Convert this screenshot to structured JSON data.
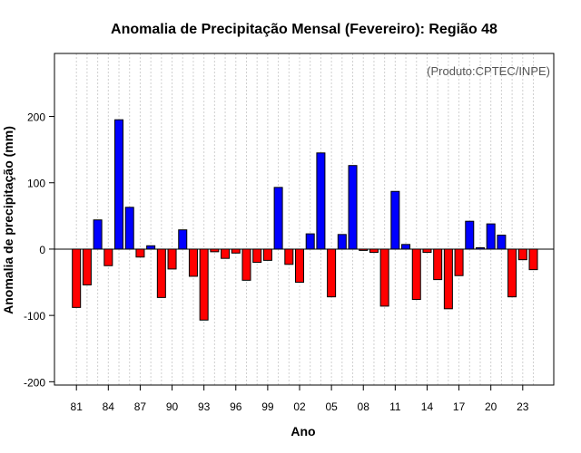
{
  "chart_data": {
    "type": "bar",
    "title": "Anomalia de Precipitação Mensal (Fevereiro): Região 48",
    "xlabel": "Ano",
    "ylabel": "Anomalia de precipitação (mm)",
    "credit": "(Produto:CPTEC/INPE)",
    "ylim": [
      -205,
      295
    ],
    "yticks": [
      -200,
      -100,
      0,
      100,
      200
    ],
    "ytick_labels": [
      "-200",
      "-100",
      "0",
      "100",
      "200"
    ],
    "categories": [
      "81",
      "82",
      "83",
      "84",
      "85",
      "86",
      "87",
      "88",
      "89",
      "90",
      "91",
      "92",
      "93",
      "94",
      "95",
      "96",
      "97",
      "98",
      "99",
      "00",
      "01",
      "02",
      "03",
      "04",
      "05",
      "06",
      "07",
      "08",
      "09",
      "10",
      "11",
      "12",
      "13",
      "14",
      "15",
      "16",
      "17",
      "18",
      "19",
      "20",
      "21",
      "22",
      "23",
      "24"
    ],
    "xtick_labels": [
      "81",
      "84",
      "87",
      "90",
      "93",
      "96",
      "99",
      "02",
      "05",
      "08",
      "11",
      "14",
      "17",
      "20",
      "23"
    ],
    "values": [
      -88,
      -54,
      44,
      -25,
      195,
      63,
      -12,
      5,
      -73,
      -30,
      29,
      -41,
      -107,
      -4,
      -14,
      -6,
      -47,
      -20,
      -17,
      93,
      -23,
      -50,
      23,
      145,
      -72,
      22,
      126,
      -2,
      -5,
      -86,
      87,
      7,
      -76,
      -5,
      -46,
      -90,
      -40,
      42,
      2,
      38,
      21,
      -72,
      -16,
      -31
    ],
    "positive_color": "#0000ff",
    "negative_color": "#ff0000",
    "grid": true,
    "series": [
      {
        "name": "Anomalia de precipitação",
        "values": [
          -88,
          -54,
          44,
          -25,
          195,
          63,
          -12,
          5,
          -73,
          -30,
          29,
          -41,
          -107,
          -4,
          -14,
          -6,
          -47,
          -20,
          -17,
          93,
          -23,
          -50,
          23,
          145,
          -72,
          22,
          126,
          -2,
          -5,
          -86,
          87,
          7,
          -76,
          -5,
          -46,
          -90,
          -40,
          42,
          2,
          38,
          21,
          -72,
          -16,
          -31
        ]
      }
    ]
  }
}
